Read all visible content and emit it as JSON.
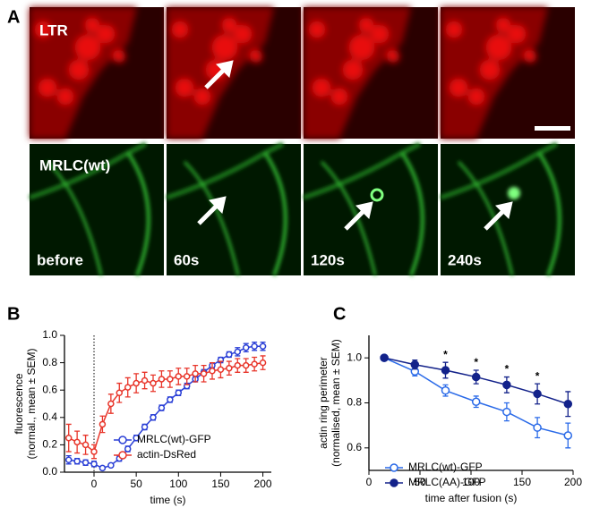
{
  "figure": {
    "panel_labels": [
      "A",
      "B",
      "C"
    ],
    "row_labels": [
      "LTR",
      "MRLC(wt)"
    ],
    "time_labels": [
      "before",
      "60s",
      "120s",
      "240s"
    ]
  },
  "chart_data": [
    {
      "type": "line",
      "xlabel": "time (s)",
      "ylabel": [
        "fluorescence",
        "(normal., mean ± SEM)"
      ],
      "x": [
        -30,
        -20,
        -10,
        0,
        10,
        20,
        30,
        40,
        50,
        60,
        70,
        80,
        90,
        100,
        110,
        120,
        130,
        140,
        150,
        160,
        170,
        180,
        190,
        200
      ],
      "series": [
        {
          "name": "MRLC(wt)-GFP",
          "color": "#2a3fd6",
          "marker": "open",
          "values": [
            0.09,
            0.08,
            0.07,
            0.06,
            0.03,
            0.05,
            0.1,
            0.17,
            0.25,
            0.33,
            0.4,
            0.47,
            0.53,
            0.58,
            0.63,
            0.68,
            0.73,
            0.78,
            0.82,
            0.86,
            0.88,
            0.91,
            0.92,
            0.92
          ],
          "errors": [
            0.03,
            0.02,
            0.02,
            0.02,
            0.01,
            0.01,
            0.02,
            0.02,
            0.02,
            0.02,
            0.02,
            0.02,
            0.02,
            0.02,
            0.02,
            0.02,
            0.02,
            0.02,
            0.02,
            0.02,
            0.03,
            0.03,
            0.03,
            0.03
          ]
        },
        {
          "name": "actin-DsRed",
          "color": "#e8352a",
          "marker": "open",
          "values": [
            0.25,
            0.22,
            0.2,
            0.15,
            0.35,
            0.5,
            0.58,
            0.62,
            0.65,
            0.67,
            0.65,
            0.68,
            0.68,
            0.7,
            0.7,
            0.72,
            0.72,
            0.74,
            0.75,
            0.76,
            0.78,
            0.78,
            0.79,
            0.8
          ],
          "errors": [
            0.1,
            0.08,
            0.07,
            0.05,
            0.06,
            0.07,
            0.07,
            0.07,
            0.07,
            0.06,
            0.06,
            0.06,
            0.06,
            0.06,
            0.06,
            0.06,
            0.06,
            0.06,
            0.06,
            0.05,
            0.05,
            0.05,
            0.05,
            0.05
          ]
        }
      ],
      "xlim": [
        -35,
        210
      ],
      "xticks": [
        0,
        50,
        100,
        150,
        200
      ],
      "ylim": [
        0,
        1.0
      ],
      "yticks": [
        {
          "value": 0,
          "label": "0.0"
        },
        0.2,
        0.4,
        0.6,
        0.8,
        {
          "value": 1.0,
          "label": "1.0"
        }
      ],
      "vline": 0,
      "legend": "lower right"
    },
    {
      "type": "line",
      "xlabel": "time after fusion (s)",
      "ylabel": [
        "actin ring perimeter",
        "(normalised, mean ± SEM)"
      ],
      "x": [
        15,
        45,
        75,
        105,
        135,
        165,
        195
      ],
      "series": [
        {
          "name": "MRLC(wt)-GFP",
          "color": "#2a6ae8",
          "marker": "open",
          "values": [
            1.0,
            0.94,
            0.855,
            0.805,
            0.76,
            0.69,
            0.655
          ],
          "errors": [
            0,
            0.02,
            0.025,
            0.025,
            0.04,
            0.045,
            0.055
          ]
        },
        {
          "name": "MRLC(AA)-GFP",
          "color": "#13228a",
          "marker": "filled",
          "values": [
            1.0,
            0.97,
            0.945,
            0.915,
            0.88,
            0.84,
            0.795
          ],
          "errors": [
            0,
            0.02,
            0.035,
            0.03,
            0.035,
            0.045,
            0.055
          ]
        }
      ],
      "xlim": [
        0,
        200
      ],
      "xticks": [
        0,
        50,
        100,
        150,
        200
      ],
      "ylim": [
        0.5,
        1.1
      ],
      "yticks": [
        0.6,
        0.8,
        {
          "value": 1.0,
          "label": "1.0"
        }
      ],
      "significance": [
        {
          "x": 75,
          "label": "*"
        },
        {
          "x": 105,
          "label": "*"
        },
        {
          "x": 135,
          "label": "*"
        },
        {
          "x": 165,
          "label": "*"
        }
      ],
      "legend": "lower left"
    }
  ]
}
